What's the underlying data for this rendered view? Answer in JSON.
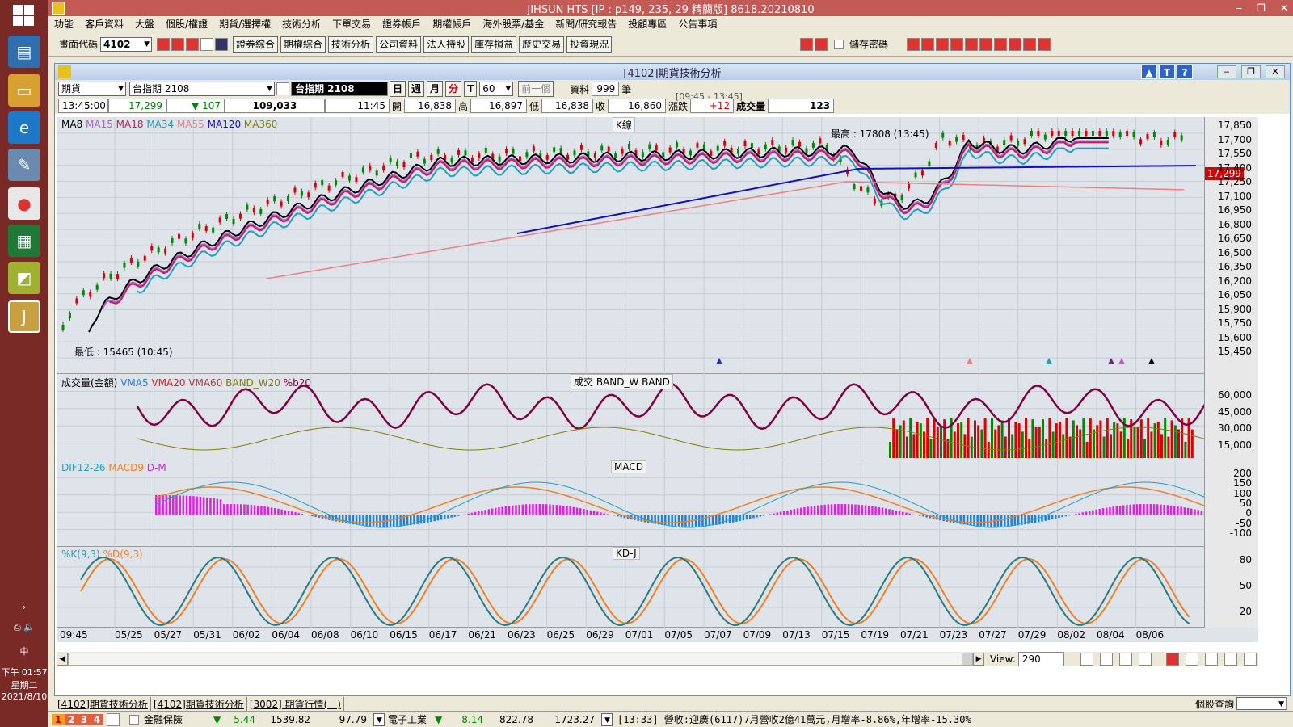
{
  "taskbar": {
    "tray_ime": "中",
    "tray_time": "下午 01:57",
    "tray_weekday": "星期二",
    "tray_date": "2021/8/10"
  },
  "window": {
    "title": "JIHSUN HTS     [IP : p149, 235, 29 精簡版] 8618.20210810",
    "controls": [
      "‒",
      "❐",
      "✕"
    ]
  },
  "menu": [
    "功能",
    "客戶資料",
    "大盤",
    "個股/權證",
    "期貨/選擇權",
    "技術分析",
    "下單交易",
    "證券帳戶",
    "期權帳戶",
    "海外股票/基金",
    "新聞/研究報告",
    "投顧專區",
    "公告事項"
  ],
  "toolbar": {
    "code_label": "畫面代碼",
    "code_value": "4102",
    "buttons": [
      "證券綜合",
      "期權綜合",
      "技術分析",
      "公司資料",
      "法人持股",
      "庫存損益",
      "歷史交易",
      "投資現況"
    ],
    "save_pwd_label": "儲存密碼"
  },
  "panel": {
    "title": "[4102]期貨技術分析",
    "help_buttons": [
      "▲",
      "T",
      "?"
    ],
    "market_select": "期貨",
    "contract_select": "台指期 2108",
    "contract_name": "台指期 2108",
    "periods": [
      "日",
      "週",
      "月",
      "分",
      "T"
    ],
    "minute_value": "60",
    "prev_button": "前一個",
    "data_label": "資料",
    "data_count": "999",
    "unit_label": "筆",
    "range_label": "[09:45 - 13:45]"
  },
  "quote": {
    "time": "13:45:00",
    "price": "17,299",
    "change": "107",
    "volume_total": "109,033",
    "bar_time": "11:45",
    "open_label": "開",
    "open": "16,838",
    "high_label": "高",
    "high": "16,897",
    "low_label": "低",
    "low": "16,838",
    "close_label": "收",
    "close": "16,860",
    "chg_label": "漲跌",
    "chg": "+12",
    "vol_label": "成交量",
    "vol": "123"
  },
  "kline": {
    "legend": [
      {
        "name": "MA8",
        "color": "#000000"
      },
      {
        "name": "MA15",
        "color": "#b060d0"
      },
      {
        "name": "MA18",
        "color": "#c02060"
      },
      {
        "name": "MA34",
        "color": "#20a0c0"
      },
      {
        "name": "MA55",
        "color": "#f08080"
      },
      {
        "name": "MA120",
        "color": "#1010c0"
      },
      {
        "name": "MA360",
        "color": "#808000"
      }
    ],
    "pane_title": "K線",
    "high_note": "最高 : 17808 (13:45)",
    "low_note": "最低 : 15465 (10:45)",
    "last_price": "17,299",
    "y_ticks": [
      "17,850",
      "17,700",
      "17,550",
      "17,400",
      "17,250",
      "17,100",
      "16,950",
      "16,800",
      "16,650",
      "16,500",
      "16,350",
      "16,200",
      "16,050",
      "15,900",
      "15,750",
      "15,600",
      "15,450"
    ]
  },
  "volume": {
    "legend": [
      {
        "name": "成交量(金額)",
        "color": "#000000"
      },
      {
        "name": "VMA5",
        "color": "#2080e0"
      },
      {
        "name": "VMA20",
        "color": "#e02020"
      },
      {
        "name": "VMA60",
        "color": "#a04040"
      },
      {
        "name": "BAND_W20",
        "color": "#808000"
      },
      {
        "name": "%b20",
        "color": "#800040"
      }
    ],
    "pane_title": "成交  BAND_W  BAND",
    "y_ticks": [
      "60,000",
      "45,000",
      "30,000",
      "15,000"
    ]
  },
  "macd": {
    "legend": [
      {
        "name": "DIF12-26",
        "color": "#20a0c0"
      },
      {
        "name": "MACD9",
        "color": "#f08020"
      },
      {
        "name": "D-M",
        "color": "#e020e0"
      }
    ],
    "pane_title": "MACD",
    "y_ticks": [
      "200",
      "150",
      "100",
      "50",
      "0",
      "-50",
      "-100"
    ]
  },
  "kd": {
    "legend": [
      {
        "name": "%K(9,3)",
        "color": "#20a0c0"
      },
      {
        "name": "%D(9,3)",
        "color": "#f08020"
      }
    ],
    "pane_title": "KD-J",
    "y_ticks": [
      "80",
      "50",
      "20"
    ]
  },
  "x_labels": [
    "09:45",
    "05/25",
    "05/27",
    "05/31",
    "06/02",
    "06/04",
    "06/08",
    "06/10",
    "06/15",
    "06/17",
    "06/21",
    "06/23",
    "06/25",
    "06/29",
    "07/01",
    "07/05",
    "07/07",
    "07/09",
    "07/13",
    "07/15",
    "07/19",
    "07/21",
    "07/23",
    "07/27",
    "07/29",
    "08/02",
    "08/04",
    "08/06"
  ],
  "scroll": {
    "view_label": "View:",
    "view_value": "290"
  },
  "tabs": [
    "[4102]期貨技術分析",
    "[4102]期貨技術分析",
    "[3002]  期貨行情(一)"
  ],
  "bottom_right_label": "個股查詢",
  "ticker": {
    "nums": [
      "1",
      "2",
      "3",
      "4"
    ],
    "item1_name": "金融保險",
    "item1_chg": "5.44",
    "item1_price": "1539.82",
    "item1_vol": "97.79",
    "item2_name": "電子工業",
    "item2_chg": "8.14",
    "item2_price": "822.78",
    "item2_vol": "1723.27",
    "news": "[13:33] 營收:迎廣(6117)7月營收2億41萬元,月增率-8.86%,年增率-15.30%"
  }
}
